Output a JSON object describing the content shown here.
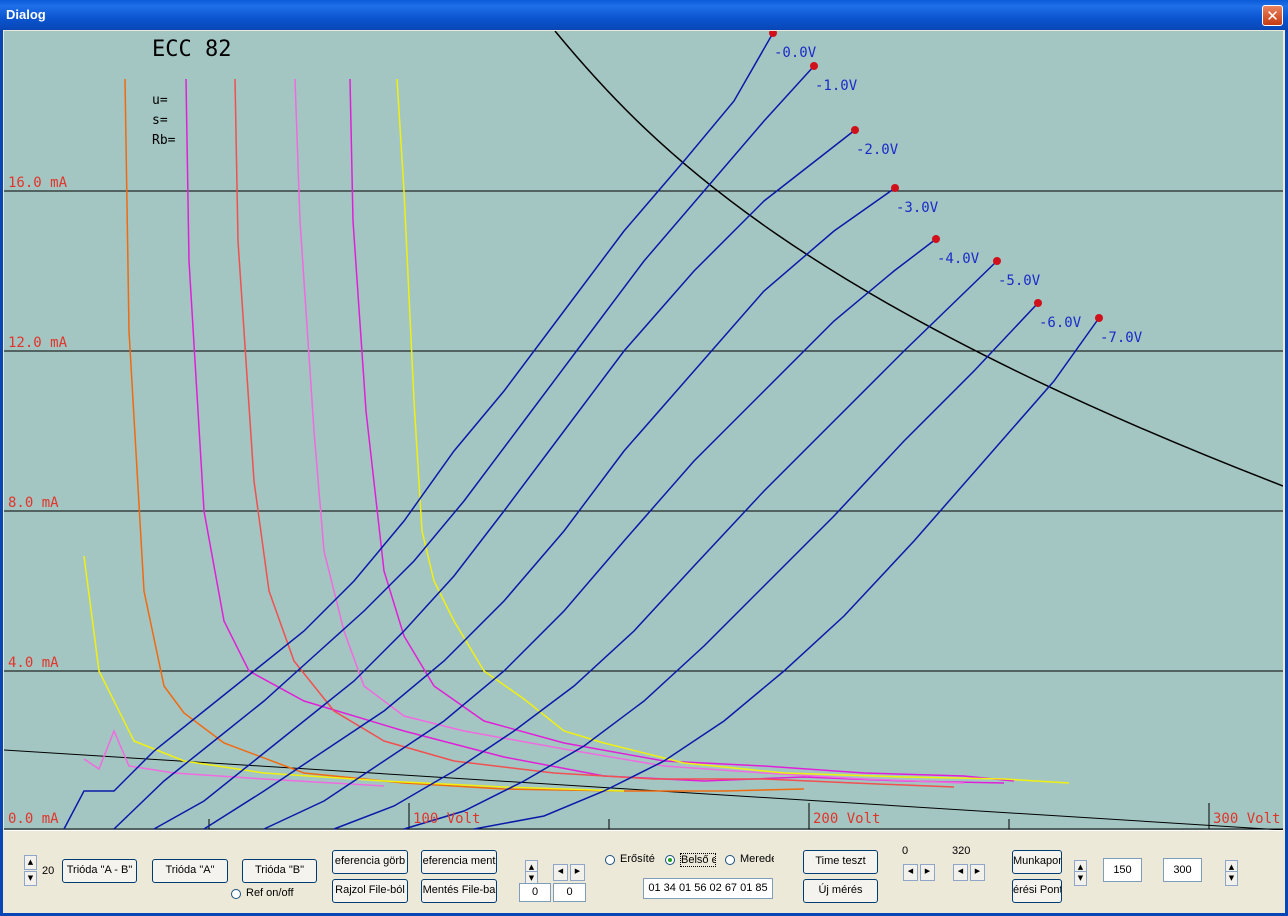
{
  "window": {
    "title": "Dialog",
    "close_glyph": "✕"
  },
  "plot": {
    "tube_name": "ECC 82",
    "params": [
      "u=",
      "s=",
      "Rb="
    ],
    "y_labels": [
      "16.0 mA",
      "12.0 mA",
      "8.0 mA",
      "4.0 mA",
      "0.0 mA"
    ],
    "x_labels": [
      "100 Volt",
      "200 Volt",
      "300 Volt"
    ],
    "grid_labels": [
      "-0.0V",
      "-1.0V",
      "-2.0V",
      "-3.0V",
      "-4.0V",
      "-5.0V",
      "-6.0V",
      "-7.0V"
    ],
    "colors": {
      "background": "#A4C6C3",
      "axis_label": "#E0352B",
      "grid_curve": "#0A1AA8",
      "marker": "#D0101A",
      "grid_label": "#1A2BC8"
    }
  },
  "controls": {
    "spin_value_left": "20",
    "btn_trioda_ab": "Trióda \"A - B\"",
    "btn_trioda_a": "Trióda  \"A\"",
    "btn_trioda_b": "Trióda  \"B\"",
    "ref_onoff": "Ref on/off",
    "btn_ref_gorbe": "eferencia görb",
    "btn_rajzol": "Rajzol File-ból",
    "btn_ref_mentes": "eferencia ment",
    "btn_mentes": "Mentés File-ba",
    "edit_a": "0",
    "edit_b": "0",
    "radio_erosites": "Erősíté",
    "radio_belso": "Belső e",
    "radio_meredek": "Merede",
    "hex_value": "01 34 01 56 02 67 01 85",
    "btn_time_test": "Time teszt",
    "btn_uj_meres": "Új mérés",
    "range_min": "0",
    "range_max": "320",
    "btn_munkapont": "Munkapon",
    "btn_meresi_pont": "érési Pont",
    "edit_150": "150",
    "edit_300": "300"
  }
}
